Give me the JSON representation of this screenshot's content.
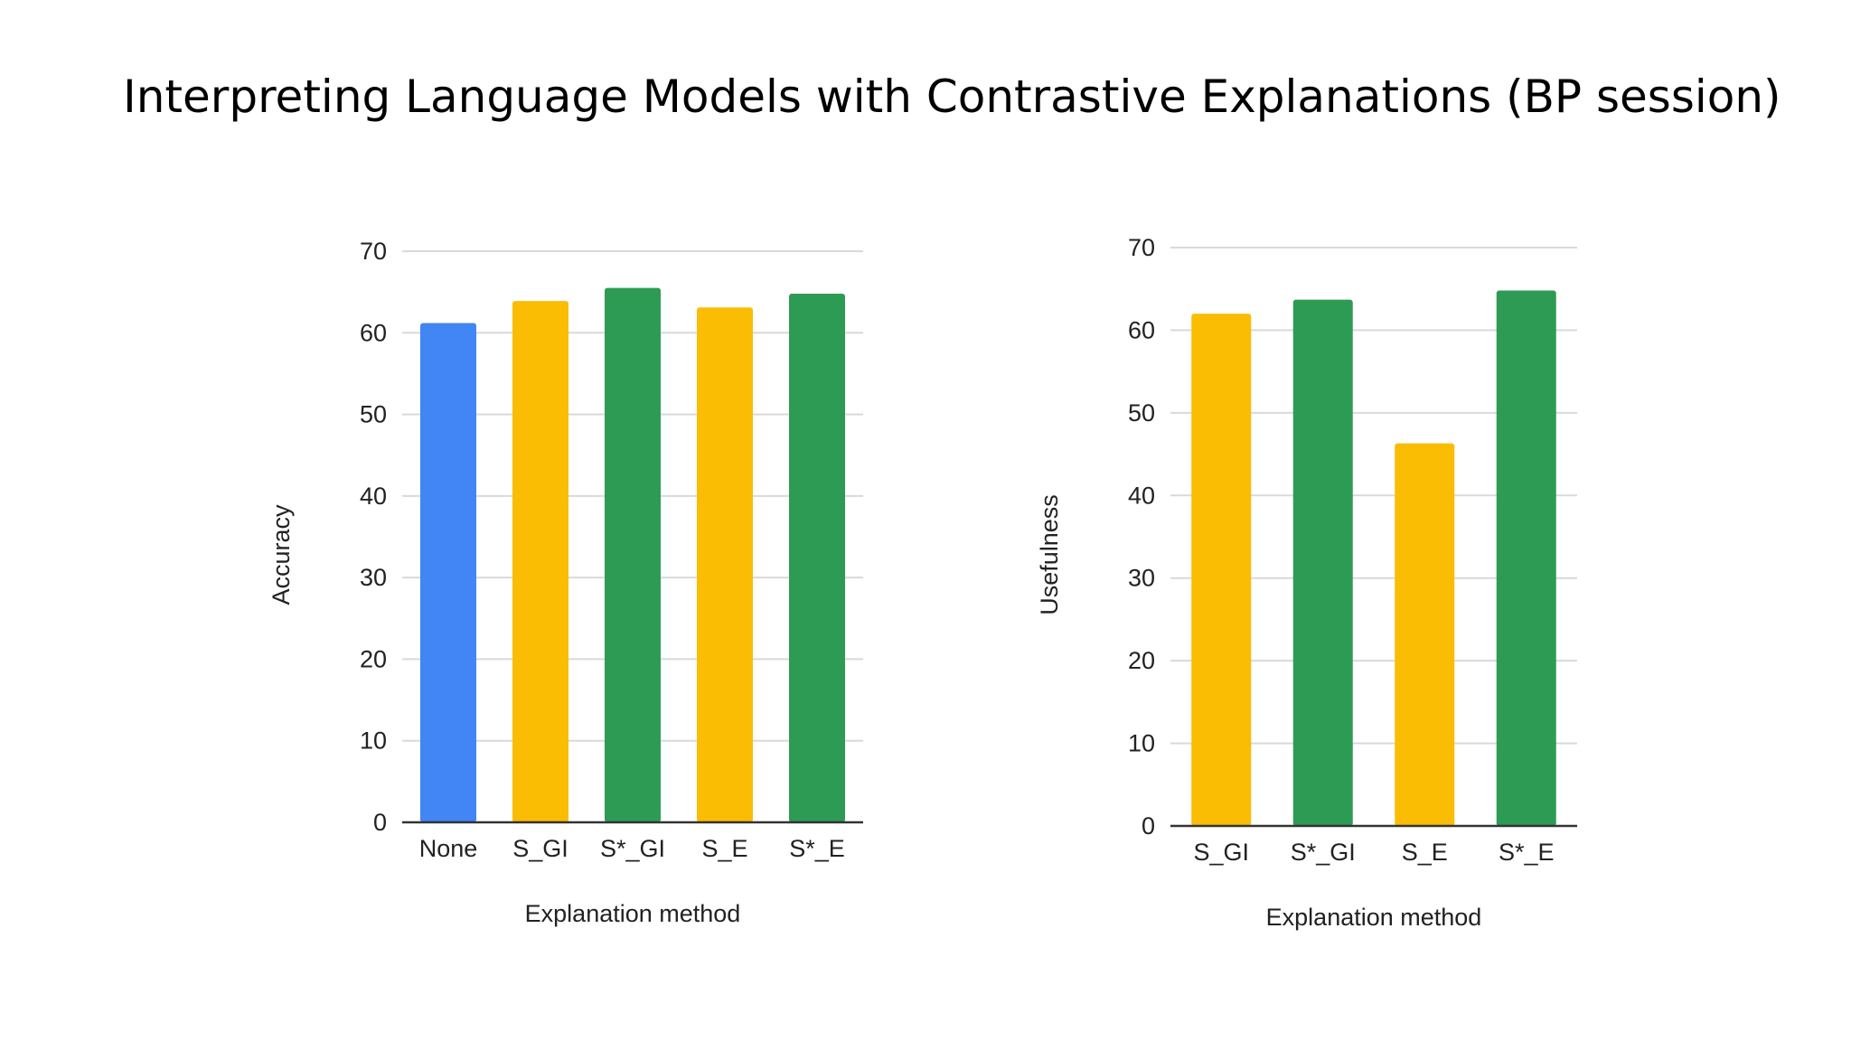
{
  "slide": {
    "title": "Interpreting Language Models with Contrastive Explanations (BP session)"
  },
  "colors": {
    "blue": "#4285F4",
    "yellow": "#FBBC04",
    "green": "#2E9B55",
    "grid": "#d9d9d9",
    "axis": "#333333"
  },
  "chart_data": [
    {
      "type": "bar",
      "categories": [
        "None",
        "S_GI",
        "S*_GI",
        "S_E",
        "S*_E"
      ],
      "values": [
        61.2,
        63.9,
        65.5,
        63.1,
        64.8
      ],
      "bar_colors": [
        "blue",
        "yellow",
        "green",
        "yellow",
        "green"
      ],
      "xlabel": "Explanation method",
      "ylabel": "Accuracy",
      "ylim": [
        0,
        70
      ],
      "yticks": [
        0,
        10,
        20,
        30,
        40,
        50,
        60,
        70
      ],
      "grid": true
    },
    {
      "type": "bar",
      "categories": [
        "S_GI",
        "S*_GI",
        "S_E",
        "S*_E"
      ],
      "values": [
        62.0,
        63.7,
        46.3,
        64.8
      ],
      "bar_colors": [
        "yellow",
        "green",
        "yellow",
        "green"
      ],
      "xlabel": "Explanation method",
      "ylabel": "Usefulness",
      "ylim": [
        0,
        70
      ],
      "yticks": [
        0,
        10,
        20,
        30,
        40,
        50,
        60,
        70
      ],
      "grid": true
    }
  ]
}
